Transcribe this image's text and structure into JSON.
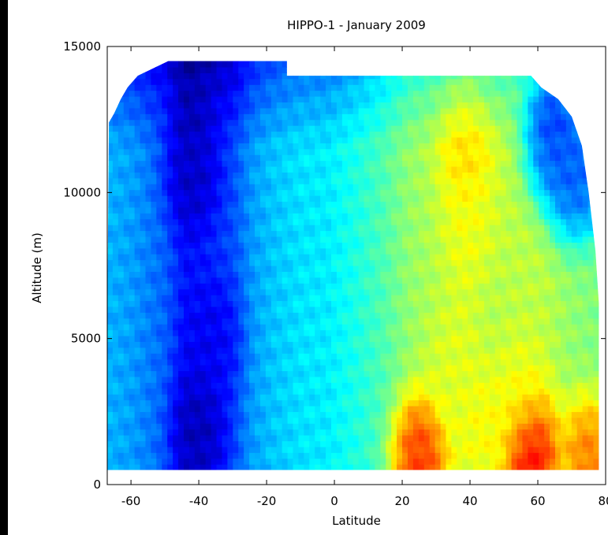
{
  "colors": {
    "background": "#ffffff",
    "axis": "#000000",
    "outer_frame": "#000000"
  },
  "chart_data": {
    "type": "heatmap",
    "title": "HIPPO-1 - January 2009",
    "xlabel": "Latitude",
    "ylabel": "Altitude (m)",
    "xlim": [
      -67,
      80
    ],
    "ylim": [
      0,
      15000
    ],
    "x_ticks": [
      -60,
      -40,
      -20,
      0,
      20,
      40,
      60,
      80
    ],
    "x_tick_labels": [
      "-60",
      "-40",
      "-20",
      "0",
      "20",
      "40",
      "60",
      "80"
    ],
    "y_ticks": [
      0,
      5000,
      10000,
      15000
    ],
    "y_tick_labels": [
      "0",
      "5000",
      "10000",
      "15000"
    ],
    "colormap": "jet",
    "color_range": [
      0,
      1
    ],
    "grid": false,
    "legend": "none",
    "data_extent": {
      "lat_min": -67,
      "lat_max": 78,
      "alt_min": 500,
      "alt_max": 14500
    },
    "top_envelope": [
      {
        "lat": -67,
        "alt": 5600
      },
      {
        "lat": -66.5,
        "alt": 12400
      },
      {
        "lat": -65,
        "alt": 12700
      },
      {
        "lat": -63,
        "alt": 13200
      },
      {
        "lat": -61,
        "alt": 13600
      },
      {
        "lat": -58,
        "alt": 14000
      },
      {
        "lat": -49,
        "alt": 14500
      },
      {
        "lat": -14,
        "alt": 14500
      },
      {
        "lat": -14,
        "alt": 14000
      },
      {
        "lat": 58,
        "alt": 14000
      },
      {
        "lat": 61,
        "alt": 13600
      },
      {
        "lat": 66,
        "alt": 13200
      },
      {
        "lat": 70,
        "alt": 12600
      },
      {
        "lat": 73,
        "alt": 11600
      },
      {
        "lat": 75,
        "alt": 10000
      },
      {
        "lat": 77,
        "alt": 8000
      },
      {
        "lat": 78,
        "alt": 6200
      },
      {
        "lat": 78,
        "alt": 500
      }
    ],
    "field_profile": [
      {
        "lat": -66,
        "value": 0.3
      },
      {
        "lat": -60,
        "value": 0.28
      },
      {
        "lat": -50,
        "value": 0.22
      },
      {
        "lat": -44,
        "value": 0.14
      },
      {
        "lat": -38,
        "value": 0.16
      },
      {
        "lat": -30,
        "value": 0.2
      },
      {
        "lat": -24,
        "value": 0.28
      },
      {
        "lat": -18,
        "value": 0.32
      },
      {
        "lat": -10,
        "value": 0.35
      },
      {
        "lat": -2,
        "value": 0.36
      },
      {
        "lat": 6,
        "value": 0.4
      },
      {
        "lat": 14,
        "value": 0.45
      },
      {
        "lat": 22,
        "value": 0.52
      },
      {
        "lat": 30,
        "value": 0.55
      },
      {
        "lat": 38,
        "value": 0.58
      },
      {
        "lat": 46,
        "value": 0.55
      },
      {
        "lat": 54,
        "value": 0.56
      },
      {
        "lat": 62,
        "value": 0.56
      },
      {
        "lat": 70,
        "value": 0.52
      },
      {
        "lat": 78,
        "value": 0.5
      }
    ],
    "features": [
      {
        "lat": -42,
        "alt": 10800,
        "value": 0.05
      },
      {
        "lat": -40,
        "alt": 1800,
        "value": 0.03
      },
      {
        "lat": -36,
        "alt": 5000,
        "value": 0.1
      },
      {
        "lat": 39,
        "alt": 11500,
        "value": 0.68
      },
      {
        "lat": 40,
        "alt": 9000,
        "value": 0.62
      },
      {
        "lat": 64,
        "alt": 11800,
        "value": 0.12
      },
      {
        "lat": 70,
        "alt": 10500,
        "value": 0.16
      },
      {
        "lat": 76,
        "alt": 11000,
        "value": 0.18
      },
      {
        "lat": 25,
        "alt": 900,
        "value": 0.9
      },
      {
        "lat": 58,
        "alt": 1000,
        "value": 0.97
      },
      {
        "lat": 75,
        "alt": 900,
        "value": 0.82
      },
      {
        "lat": 45,
        "alt": 2000,
        "value": 0.64
      },
      {
        "lat": 35,
        "alt": 4000,
        "value": 0.6
      },
      {
        "lat": 55,
        "alt": 3000,
        "value": 0.62
      }
    ]
  }
}
